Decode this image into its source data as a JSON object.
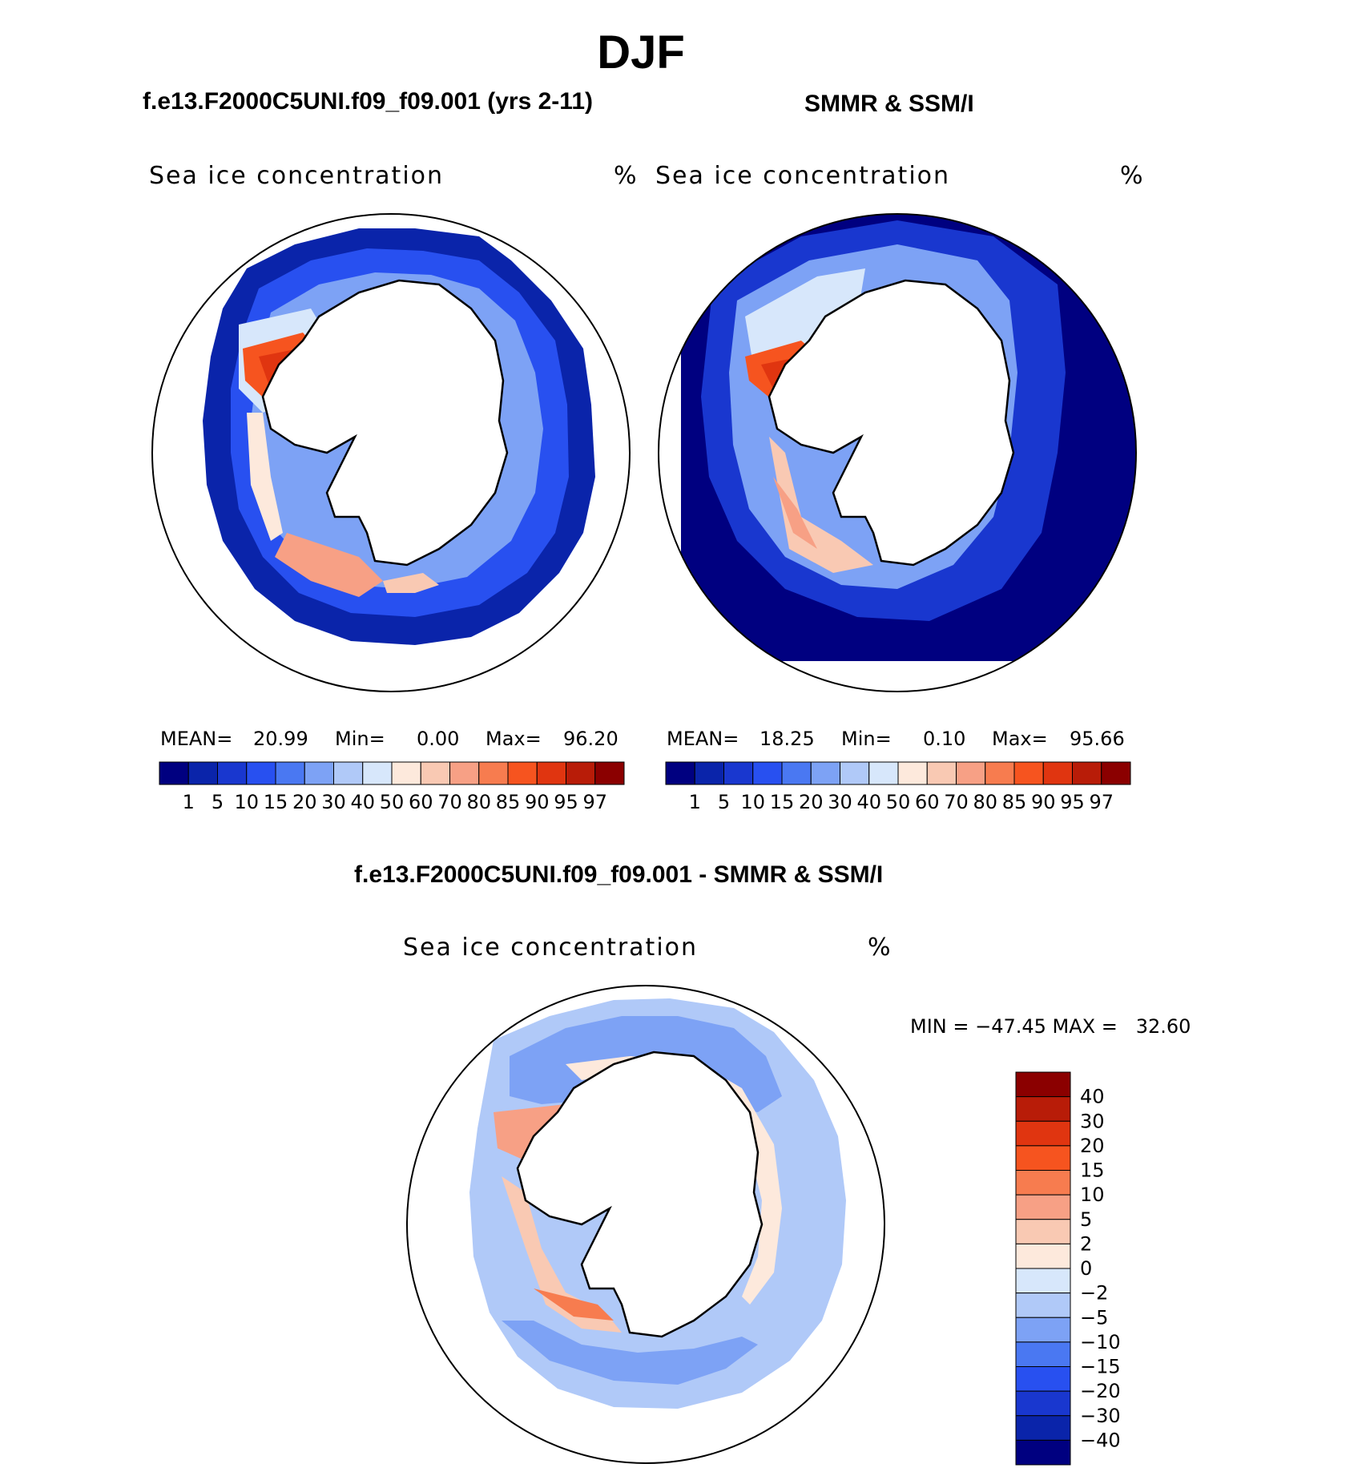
{
  "season": "DJF",
  "panels": {
    "model": {
      "title": "f.e13.F2000C5UNI.f09_f09.001 (yrs 2-11)",
      "field_label": "Sea ice concentration",
      "units": "%",
      "mean_label": "MEAN=",
      "mean_value": "20.99",
      "min_label": "Min=",
      "min_value": "0.00",
      "max_label": "Max=",
      "max_value": "96.20"
    },
    "obs": {
      "title": "SMMR & SSM/I",
      "field_label": "Sea ice concentration",
      "units": "%",
      "mean_label": "MEAN=",
      "mean_value": "18.25",
      "min_label": "Min=",
      "min_value": "0.10",
      "max_label": "Max=",
      "max_value": "95.66"
    },
    "diff": {
      "title": "f.e13.F2000C5UNI.f09_f09.001 - SMMR & SSM/I",
      "field_label": "Sea ice concentration",
      "units": "%",
      "minmax_text": "MIN = −47.45 MAX =   32.60"
    }
  },
  "conc_colorbar": {
    "colors": [
      "#000080",
      "#0a24aa",
      "#1937cf",
      "#2850f0",
      "#4a78f2",
      "#7da2f5",
      "#b0c9f8",
      "#d7e7fb",
      "#fde9dc",
      "#f9c9b3",
      "#f7a085",
      "#f77c4f",
      "#f6541f",
      "#e03510",
      "#b81c08",
      "#8b0000"
    ],
    "ticks": [
      "1",
      "5",
      "10",
      "15",
      "20",
      "30",
      "40",
      "50",
      "60",
      "70",
      "80",
      "85",
      "90",
      "95",
      "97"
    ]
  },
  "diff_colorbar": {
    "colors": [
      "#8b0000",
      "#b81c08",
      "#e03510",
      "#f6541f",
      "#f77c4f",
      "#f7a085",
      "#f9c9b3",
      "#fde9dc",
      "#d7e7fb",
      "#b0c9f8",
      "#7da2f5",
      "#4a78f2",
      "#2850f0",
      "#1937cf",
      "#0a24aa",
      "#000080"
    ],
    "ticks": [
      "40",
      "30",
      "20",
      "15",
      "10",
      "5",
      "2",
      "0",
      "−2",
      "−5",
      "−10",
      "−15",
      "−20",
      "−30",
      "−40"
    ]
  }
}
